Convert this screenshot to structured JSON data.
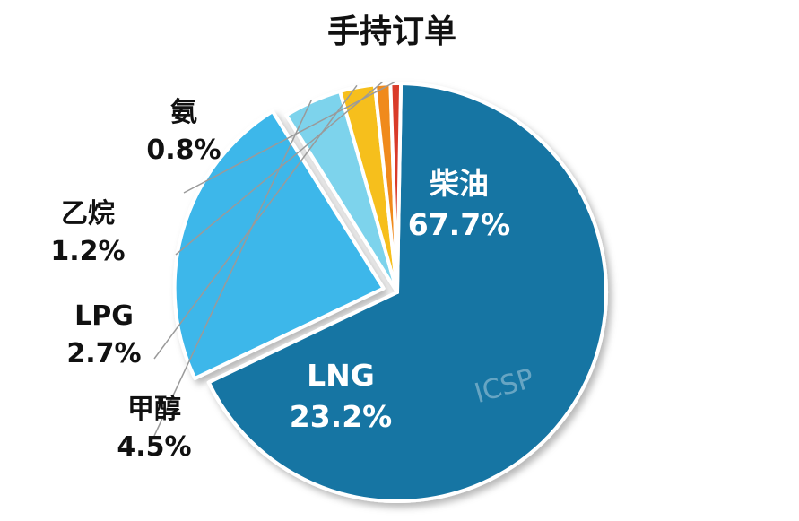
{
  "chart_data": {
    "type": "pie",
    "title": "手持订单",
    "slices": [
      {
        "label": "柴油",
        "value": 67.7,
        "value_text": "67.7%",
        "color": "#1574a3",
        "label_placement": "inside",
        "exploded": false
      },
      {
        "label": "LNG",
        "value": 23.2,
        "value_text": "23.2%",
        "color": "#3db7ea",
        "label_placement": "inside",
        "exploded": true
      },
      {
        "label": "甲醇",
        "value": 4.5,
        "value_text": "4.5%",
        "color": "#7dd3ec",
        "label_placement": "outside",
        "exploded": false
      },
      {
        "label": "LPG",
        "value": 2.7,
        "value_text": "2.7%",
        "color": "#f6bf1c",
        "label_placement": "outside",
        "exploded": false
      },
      {
        "label": "乙烷",
        "value": 1.2,
        "value_text": "1.2%",
        "color": "#f08a1c",
        "label_placement": "outside",
        "exploded": false
      },
      {
        "label": "氨",
        "value": 0.8,
        "value_text": "0.8%",
        "color": "#d93a2b",
        "label_placement": "outside",
        "exploded": false
      }
    ],
    "watermark": "ICSP"
  }
}
